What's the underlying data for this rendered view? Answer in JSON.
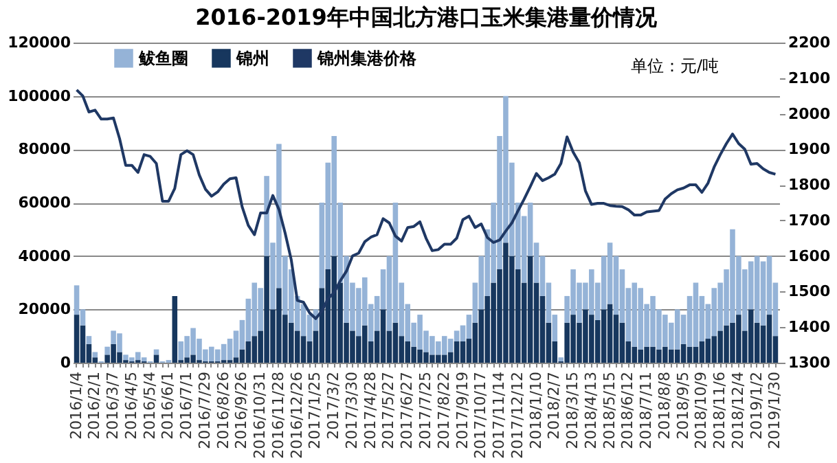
{
  "chart_data": {
    "type": "bar",
    "title": "2016-2019年中国北方港口玉米集港量价情况",
    "stacked": true,
    "grid": "y",
    "legend": "top",
    "annotations": [
      "单位：元/吨"
    ],
    "categories": [
      "2016/1/4",
      null,
      null,
      "2016/2/1",
      null,
      null,
      "2016/3/7",
      null,
      null,
      "2016/4/5",
      null,
      null,
      "2016/5/4",
      null,
      null,
      "2016/6/1",
      null,
      null,
      "2016/7/1",
      null,
      null,
      "2016/7/29",
      null,
      null,
      "2016/8/26",
      null,
      null,
      "2016/9/26",
      null,
      null,
      "2016/10/31",
      null,
      null,
      "2016/11/28",
      null,
      null,
      "2016/12/26",
      null,
      null,
      "2017/1/25",
      null,
      null,
      "2017/3/2",
      null,
      null,
      "2017/3/30",
      null,
      null,
      "2017/4/28",
      null,
      null,
      "2017/5/27",
      null,
      null,
      "2017/6/27",
      null,
      null,
      "2017/7/25",
      null,
      null,
      "2017/8/22",
      null,
      null,
      "2017/9/19",
      null,
      null,
      "2017/10/17",
      null,
      null,
      "2017/11/14",
      null,
      null,
      "2017/12/12",
      null,
      null,
      "2018/1/10",
      null,
      null,
      "2018/2/7",
      null,
      null,
      "2018/3/15",
      null,
      null,
      "2018/4/13",
      null,
      null,
      "2018/5/15",
      null,
      null,
      "2018/6/12",
      null,
      null,
      "2018/7/11",
      null,
      null,
      "2018/8/8",
      null,
      null,
      "2018/9/5",
      null,
      null,
      "2018/10/9",
      null,
      null,
      "2018/11/6",
      null,
      null,
      "2018/12/4",
      null,
      null,
      "2019/1/2",
      null,
      null,
      "2019/1/30"
    ],
    "ylim": [
      0,
      120000
    ],
    "yticks": [
      0,
      20000,
      40000,
      60000,
      80000,
      100000,
      120000
    ],
    "y2lim": [
      1300,
      2200
    ],
    "y2ticks": [
      1300,
      1400,
      1500,
      1600,
      1700,
      1800,
      1900,
      2000,
      2100,
      2200
    ],
    "series": [
      {
        "name": "锦州",
        "type": "bar",
        "color": "#17375e",
        "values": [
          18000,
          14000,
          7000,
          2000,
          0,
          3000,
          7000,
          4000,
          1000,
          500,
          1000,
          500,
          0,
          3000,
          0,
          0,
          25000,
          1000,
          2000,
          3000,
          1000,
          500,
          500,
          500,
          1000,
          1000,
          2000,
          5000,
          8000,
          10000,
          12000,
          40000,
          20000,
          28000,
          18000,
          15000,
          12000,
          10000,
          8000,
          12000,
          28000,
          35000,
          40000,
          30000,
          15000,
          12000,
          10000,
          14000,
          8000,
          12000,
          20000,
          12000,
          15000,
          10000,
          8000,
          6000,
          5000,
          4000,
          3000,
          3000,
          3000,
          4000,
          8000,
          8000,
          9000,
          15000,
          20000,
          25000,
          30000,
          35000,
          45000,
          40000,
          35000,
          30000,
          40000,
          30000,
          25000,
          15000,
          8000,
          500,
          15000,
          18000,
          15000,
          20000,
          18000,
          16000,
          20000,
          22000,
          18000,
          15000,
          8000,
          6000,
          5000,
          6000,
          6000,
          5000,
          6000,
          5000,
          5000,
          7000,
          6000,
          6000,
          8000,
          9000,
          10000,
          12000,
          14000,
          15000,
          18000,
          12000,
          20000,
          15000,
          14000,
          18000,
          10000
        ]
      },
      {
        "name": "鲅鱼圈",
        "type": "bar",
        "color": "#95b3d7",
        "values": [
          11000,
          6000,
          3000,
          2000,
          500,
          3000,
          5000,
          7000,
          2000,
          1500,
          3000,
          1500,
          500,
          2000,
          500,
          1000,
          0,
          7000,
          8000,
          10000,
          8000,
          4500,
          5500,
          4500,
          6000,
          8000,
          10000,
          11000,
          16000,
          20000,
          16000,
          30000,
          25000,
          54000,
          22000,
          20000,
          13000,
          12000,
          10000,
          8000,
          32000,
          40000,
          45000,
          30000,
          25000,
          18000,
          18000,
          18000,
          14000,
          13000,
          15000,
          28000,
          45000,
          20000,
          14000,
          9000,
          13000,
          8000,
          7000,
          5000,
          7000,
          5000,
          4000,
          6000,
          9000,
          15000,
          20000,
          25000,
          30000,
          50000,
          55000,
          35000,
          25000,
          25000,
          20000,
          15000,
          15000,
          15000,
          10000,
          1500,
          10000,
          17000,
          15000,
          10000,
          17000,
          14000,
          20000,
          23000,
          22000,
          20000,
          20000,
          24000,
          23000,
          16000,
          19000,
          15000,
          12000,
          10000,
          15000,
          11000,
          19000,
          24000,
          17000,
          13000,
          18000,
          18000,
          21000,
          35000,
          22000,
          23000,
          18000,
          25000,
          24000,
          22000,
          20000
        ]
      },
      {
        "name": "锦州集港价格",
        "type": "line",
        "axis": "y2",
        "color": "#1f3864",
        "values": [
          2067,
          2050,
          2005,
          2010,
          1985,
          1985,
          1988,
          1930,
          1855,
          1855,
          1835,
          1885,
          1880,
          1860,
          1754,
          1754,
          1790,
          1885,
          1896,
          1885,
          1828,
          1788,
          1768,
          1780,
          1802,
          1817,
          1820,
          1738,
          1686,
          1660,
          1721,
          1721,
          1770,
          1731,
          1665,
          1590,
          1475,
          1470,
          1440,
          1424,
          1445,
          1480,
          1497,
          1530,
          1557,
          1600,
          1608,
          1640,
          1653,
          1660,
          1705,
          1693,
          1656,
          1642,
          1680,
          1683,
          1696,
          1650,
          1615,
          1618,
          1633,
          1633,
          1650,
          1702,
          1712,
          1680,
          1690,
          1652,
          1638,
          1645,
          1670,
          1693,
          1727,
          1760,
          1795,
          1832,
          1812,
          1820,
          1830,
          1860,
          1935,
          1892,
          1862,
          1783,
          1745,
          1748,
          1748,
          1742,
          1740,
          1739,
          1730,
          1715,
          1715,
          1724,
          1726,
          1728,
          1760,
          1775,
          1786,
          1791,
          1800,
          1800,
          1779,
          1805,
          1850,
          1885,
          1916,
          1943,
          1916,
          1900,
          1858,
          1860,
          1845,
          1835,
          1830
        ]
      }
    ]
  }
}
